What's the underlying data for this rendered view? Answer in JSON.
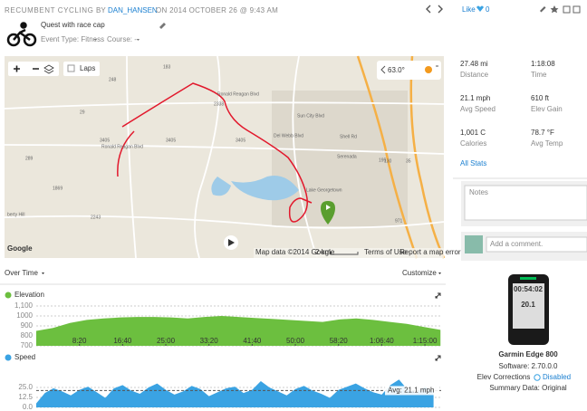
{
  "header": {
    "sport": "RECUMBENT CYCLING",
    "by": "BY",
    "user": "DAN_HANSEN",
    "date": "ON 2014 OCTOBER 26 @ 9:43 AM",
    "title": "Quest with race cap",
    "event_type": "Event Type: Fitness",
    "course": "Course: --",
    "like": "Like",
    "like_count": "0"
  },
  "map": {
    "laps": "Laps",
    "temperature": "63.0°",
    "google": "Google",
    "attribution": "Map data ©2014 Google",
    "scale": "2 km",
    "terms": "Terms of Use",
    "report": "Report a map error",
    "labels": [
      "Ronald Reagan Blvd",
      "2338",
      "3405",
      "3405",
      "183",
      "29",
      "1869",
      "2243",
      "289",
      "971",
      "195",
      "130",
      "35",
      "Serenada",
      "Lake Georgetown",
      "berty Hill",
      "Sun City Blvd",
      "Del Webb Blvd",
      "Shell Rd",
      "Ronald Reagan Blvd",
      "248",
      "3405"
    ]
  },
  "stats": [
    {
      "value": "27.48 mi",
      "label": "Distance"
    },
    {
      "value": "1:18:08",
      "label": "Time"
    },
    {
      "value": "21.1 mph",
      "label": "Avg Speed"
    },
    {
      "value": "610 ft",
      "label": "Elev Gain"
    },
    {
      "value": "1,001 C",
      "label": "Calories"
    },
    {
      "value": "78.7 °F",
      "label": "Avg Temp"
    }
  ],
  "all_stats": "All Stats",
  "notes": "Notes",
  "comment": "Add a comment.",
  "device": {
    "screen_time": "00:54:02",
    "screen_speed": "20.1",
    "name": "Garmin Edge 800",
    "software": "Software: 2.70.0.0",
    "elev": "Elev Corrections",
    "elev_value": "Disabled",
    "summary": "Summary Data: Original"
  },
  "over_time": "Over Time",
  "customize": "Customize",
  "chart_data": [
    {
      "type": "area",
      "title": "Elevation",
      "color": "#6cbf3f",
      "xlim": [
        0,
        4688
      ],
      "ylim": [
        700,
        1100
      ],
      "yticks": [
        700,
        800,
        900,
        1000,
        {
          "value": 1100,
          "label": "1,100"
        }
      ],
      "xticks": [
        {
          "value": 500,
          "label": "8:20"
        },
        {
          "value": 1000,
          "label": "16:40"
        },
        {
          "value": 1500,
          "label": "25:00"
        },
        {
          "value": 2000,
          "label": "33:20"
        },
        {
          "value": 2500,
          "label": "41:40"
        },
        {
          "value": 3000,
          "label": "50:00"
        },
        {
          "value": 3500,
          "label": "58:20"
        },
        {
          "value": 4000,
          "label": "1:06:40"
        },
        {
          "value": 4500,
          "label": "1:15:00"
        }
      ],
      "x": [
        0,
        195,
        390,
        585,
        780,
        975,
        1170,
        1365,
        1560,
        1755,
        1950,
        2145,
        2340,
        2535,
        2730,
        2925,
        3120,
        3315,
        3510,
        3705,
        3900,
        4095,
        4290,
        4485,
        4680
      ],
      "values": [
        850,
        880,
        930,
        960,
        975,
        985,
        990,
        990,
        985,
        975,
        990,
        1000,
        990,
        980,
        970,
        960,
        950,
        940,
        965,
        975,
        960,
        940,
        920,
        890,
        860
      ]
    },
    {
      "type": "area",
      "title": "Speed",
      "color": "#3aa3e3",
      "xlim": [
        0,
        4688
      ],
      "ylim": [
        0,
        50
      ],
      "yticks": [
        {
          "value": 0,
          "label": "0.0"
        },
        12.5,
        {
          "value": 25,
          "label": "25.0"
        }
      ],
      "avg": 21.1,
      "avg_label": "Avg: 21.1 mph",
      "x": [
        0,
        100,
        200,
        300,
        400,
        500,
        600,
        700,
        800,
        900,
        1000,
        1100,
        1200,
        1300,
        1400,
        1500,
        1600,
        1700,
        1800,
        1900,
        2000,
        2100,
        2200,
        2300,
        2400,
        2500,
        2600,
        2700,
        2800,
        2900,
        3000,
        3100,
        3200,
        3300,
        3400,
        3500,
        3600,
        3700,
        3800,
        3900,
        4000,
        4100,
        4200,
        4300,
        4400,
        4500,
        4600
      ],
      "values": [
        5,
        18,
        24,
        20,
        15,
        22,
        26,
        19,
        12,
        24,
        28,
        21,
        17,
        25,
        30,
        22,
        16,
        20,
        27,
        23,
        14,
        19,
        24,
        26,
        18,
        22,
        33,
        25,
        20,
        15,
        23,
        27,
        21,
        17,
        12,
        22,
        26,
        30,
        24,
        19,
        16,
        28,
        35,
        22,
        18,
        26,
        20
      ]
    }
  ]
}
